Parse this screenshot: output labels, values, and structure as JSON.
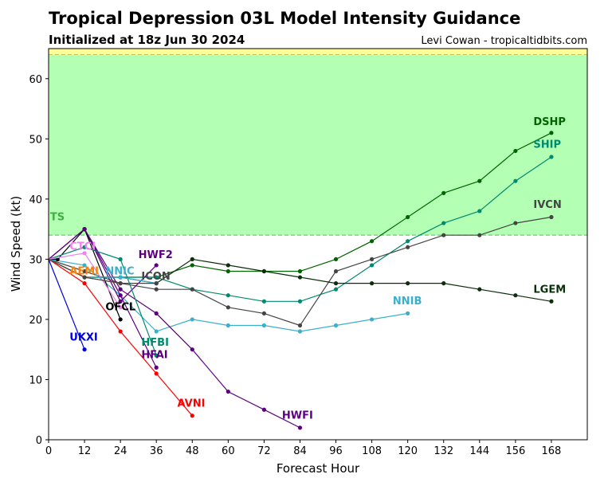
{
  "chart_data": {
    "type": "line",
    "title": "Tropical Depression 03L Model Intensity Guidance",
    "subtitle": "Initialized at 18z Jun 30 2024",
    "credit": "Levi Cowan - tropicaltidbits.com",
    "xlabel": "Forecast Hour",
    "ylabel": "Wind Speed (kt)",
    "xlim": [
      0,
      180
    ],
    "ylim": [
      0,
      65
    ],
    "xticks": [
      0,
      12,
      24,
      36,
      48,
      60,
      72,
      84,
      96,
      108,
      120,
      132,
      144,
      156,
      168
    ],
    "yticks": [
      0,
      10,
      20,
      30,
      40,
      50,
      60
    ],
    "grid": false,
    "bands": [
      {
        "name": "TS",
        "from": 34,
        "to": 64,
        "color": "#b3ffb3",
        "line_color": "#5cb85c"
      },
      {
        "name": "",
        "from": 64,
        "to": 65,
        "color": "#ffff99",
        "line_color": "#d4c44a"
      }
    ],
    "series": [
      {
        "name": "DSHP",
        "color": "#006400",
        "x": [
          0,
          12,
          24,
          36,
          48,
          60,
          72,
          84,
          96,
          108,
          120,
          132,
          144,
          156,
          168
        ],
        "values": [
          30,
          27,
          27,
          27,
          29,
          28,
          28,
          28,
          30,
          33,
          37,
          41,
          43,
          48,
          51
        ]
      },
      {
        "name": "SHIP",
        "color": "#008a6e",
        "x": [
          0,
          12,
          24,
          36,
          48,
          60,
          72,
          84,
          96,
          108,
          120,
          132,
          144,
          156,
          168
        ],
        "values": [
          30,
          27,
          27,
          27,
          25,
          24,
          23,
          23,
          25,
          29,
          33,
          36,
          38,
          43,
          47
        ]
      },
      {
        "name": "IVCN",
        "color": "#444444",
        "x": [
          0,
          12,
          24,
          36,
          48,
          60,
          72,
          84,
          96,
          108,
          120,
          132,
          144,
          156,
          168
        ],
        "values": [
          30,
          28,
          26,
          25,
          25,
          22,
          21,
          19,
          28,
          30,
          32,
          34,
          34,
          36,
          37
        ]
      },
      {
        "name": "LGEM",
        "color": "#0b2e0b",
        "x": [
          0,
          12,
          24,
          36,
          48,
          60,
          72,
          84,
          96,
          108,
          120,
          132,
          144,
          156,
          168
        ],
        "values": [
          30,
          27,
          27,
          26,
          30,
          29,
          28,
          27,
          26,
          26,
          26,
          26,
          25,
          24,
          23
        ]
      },
      {
        "name": "NNIB",
        "color": "#3ab0cc",
        "x": [
          0,
          12,
          24,
          36,
          48,
          60,
          72,
          84,
          96,
          108,
          120
        ],
        "values": [
          30,
          29,
          24,
          18,
          20,
          19,
          19,
          18,
          19,
          20,
          21
        ]
      },
      {
        "name": "HWFI",
        "color": "#5c0080",
        "x": [
          0,
          12,
          24,
          36,
          48,
          60,
          72,
          84
        ],
        "values": [
          30,
          35,
          25,
          21,
          15,
          8,
          5,
          2
        ]
      },
      {
        "name": "AVNI",
        "color": "#ff0000",
        "x": [
          0,
          12,
          24,
          36,
          48
        ],
        "values": [
          30,
          26,
          18,
          11,
          4
        ]
      },
      {
        "name": "UKXI",
        "color": "#0000dd",
        "x": [
          0,
          12
        ],
        "values": [
          30,
          15
        ]
      },
      {
        "name": "HWF2",
        "color": "#5c0080",
        "x": [
          0,
          12,
          24,
          36
        ],
        "values": [
          30,
          35,
          23,
          29
        ]
      },
      {
        "name": "OFCL",
        "color": "#000000",
        "x": [
          0,
          3,
          12,
          24
        ],
        "values": [
          30,
          30,
          35,
          20
        ]
      },
      {
        "name": "HFAI",
        "color": "#5c0080",
        "x": [
          0,
          12,
          24,
          36
        ],
        "values": [
          30,
          35,
          24,
          12
        ]
      },
      {
        "name": "HFBI",
        "color": "#008a6e",
        "x": [
          0,
          12,
          24,
          36
        ],
        "values": [
          30,
          32,
          30,
          14
        ]
      },
      {
        "name": "CTCI",
        "color": "#ee82ee",
        "x": [
          0,
          12,
          24
        ],
        "values": [
          30,
          31,
          22
        ]
      },
      {
        "name": "NNIC",
        "color": "#3ab0cc",
        "x": [
          0,
          12,
          24,
          36
        ],
        "values": [
          30,
          27,
          27,
          26
        ]
      },
      {
        "name": "AEMI",
        "color": "#ff7f00",
        "x": [
          0,
          12,
          24
        ],
        "values": [
          30,
          27,
          26
        ]
      },
      {
        "name": "ICON",
        "color": "#444444",
        "x": [
          0,
          12,
          24,
          36
        ],
        "values": [
          30,
          27,
          26,
          26
        ]
      }
    ],
    "labels": [
      {
        "text": "TS",
        "x": 0.5,
        "y": 36.5,
        "color": "#3cb043"
      },
      {
        "text": "DSHP",
        "x": 162,
        "y": 52.3,
        "color": "#006400"
      },
      {
        "text": "SHIP",
        "x": 162,
        "y": 48.5,
        "color": "#008a6e"
      },
      {
        "text": "IVCN",
        "x": 162,
        "y": 38.5,
        "color": "#444444"
      },
      {
        "text": "LGEM",
        "x": 162,
        "y": 24.4,
        "color": "#0b2e0b"
      },
      {
        "text": "NNIB",
        "x": 115,
        "y": 22.5,
        "color": "#3ab0cc"
      },
      {
        "text": "HWFI",
        "x": 78,
        "y": 3.5,
        "color": "#5c0080"
      },
      {
        "text": "AVNI",
        "x": 43,
        "y": 5.5,
        "color": "#ff0000"
      },
      {
        "text": "UKXI",
        "x": 7,
        "y": 16.5,
        "color": "#0000dd"
      },
      {
        "text": "HWF2",
        "x": 30,
        "y": 30.2,
        "color": "#5c0080"
      },
      {
        "text": "OFCL",
        "x": 19,
        "y": 21.5,
        "color": "#000000"
      },
      {
        "text": "HFBI",
        "x": 31,
        "y": 15.6,
        "color": "#008a6e"
      },
      {
        "text": "HFAI",
        "x": 31,
        "y": 13.6,
        "color": "#5c0080"
      },
      {
        "text": "CTCI",
        "x": 7,
        "y": 31.6,
        "color": "#ee82ee"
      },
      {
        "text": "NNIC",
        "x": 19,
        "y": 27.5,
        "color": "#3ab0cc"
      },
      {
        "text": "AEMI",
        "x": 7,
        "y": 27.5,
        "color": "#ff7f00"
      },
      {
        "text": "ICON",
        "x": 31,
        "y": 26.6,
        "color": "#444444"
      }
    ]
  }
}
